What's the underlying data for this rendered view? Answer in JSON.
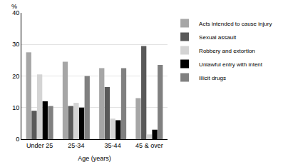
{
  "chart_data": {
    "type": "bar",
    "y_label": "%",
    "x_label": "Age (years)",
    "categories": [
      "Under 25",
      "25-34",
      "35-44",
      "45 & over"
    ],
    "series": [
      {
        "name": "Acts intended to cause injury",
        "color": "#a6a6a6",
        "values": [
          27.5,
          24.5,
          22.5,
          13
        ]
      },
      {
        "name": "Sexual assault",
        "color": "#595959",
        "values": [
          9,
          10.5,
          16.5,
          29.5
        ]
      },
      {
        "name": "Robbery and extortion",
        "color": "#d4d4d4",
        "values": [
          20.5,
          11.5,
          6.5,
          1.5
        ]
      },
      {
        "name": "Unlawful entry with intent",
        "color": "#000000",
        "values": [
          12,
          10,
          6,
          3
        ]
      },
      {
        "name": "Illicit drugs",
        "color": "#808080",
        "values": [
          10.5,
          20,
          22.5,
          23.5
        ]
      }
    ],
    "ylim": [
      0,
      40
    ],
    "yticks": [
      0,
      10,
      20,
      30,
      40
    ],
    "grid": true,
    "legend": "right"
  }
}
